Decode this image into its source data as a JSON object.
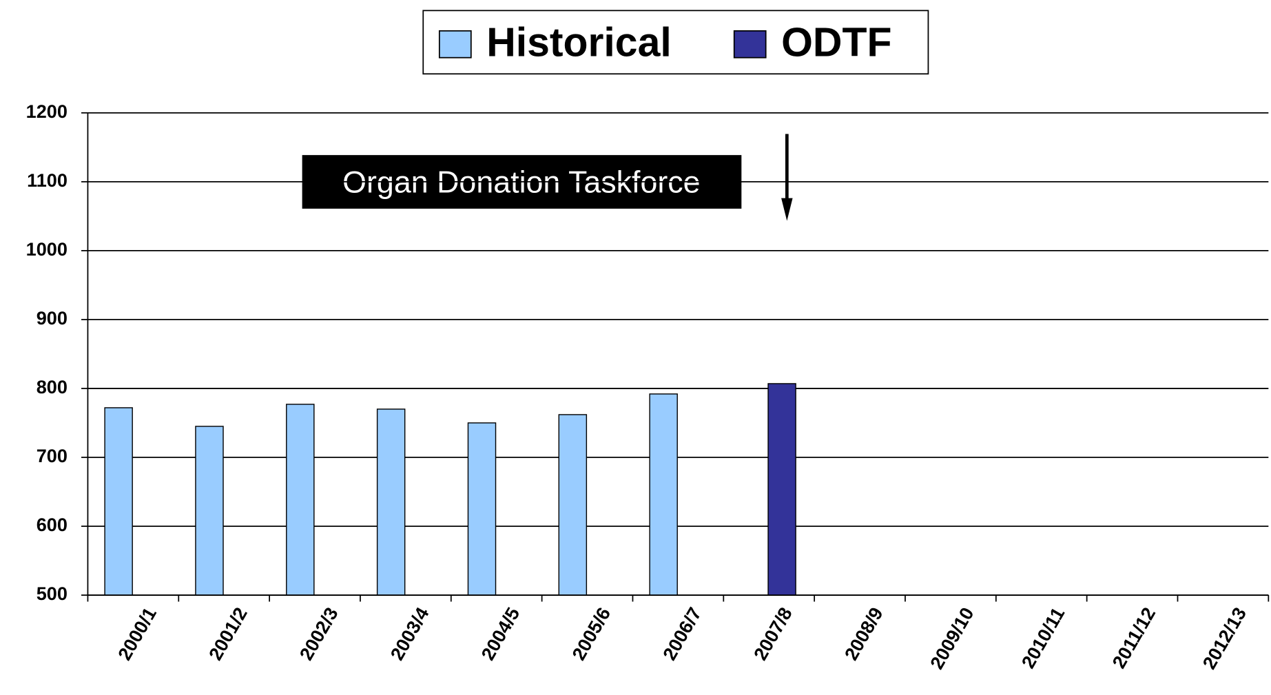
{
  "chart_data": {
    "type": "bar",
    "categories": [
      "2000/1",
      "2001/2",
      "2002/3",
      "2003/4",
      "2004/5",
      "2005/6",
      "2006/7",
      "2007/8",
      "2008/9",
      "2009/10",
      "2010/11",
      "2011/12",
      "2012/13"
    ],
    "series": [
      {
        "name": "Historical",
        "color": "#99ccff",
        "values": [
          772,
          745,
          777,
          770,
          750,
          762,
          792,
          null,
          null,
          null,
          null,
          null,
          null
        ]
      },
      {
        "name": "ODTF",
        "color": "#333399",
        "values": [
          null,
          null,
          null,
          null,
          null,
          null,
          null,
          807,
          null,
          null,
          null,
          null,
          null
        ]
      }
    ],
    "ylim": [
      500,
      1200
    ],
    "yticks": [
      500,
      600,
      700,
      800,
      900,
      1000,
      1100,
      1200
    ],
    "grid": true,
    "legend": "top",
    "annotation": "Organ Donation Taskforce"
  }
}
